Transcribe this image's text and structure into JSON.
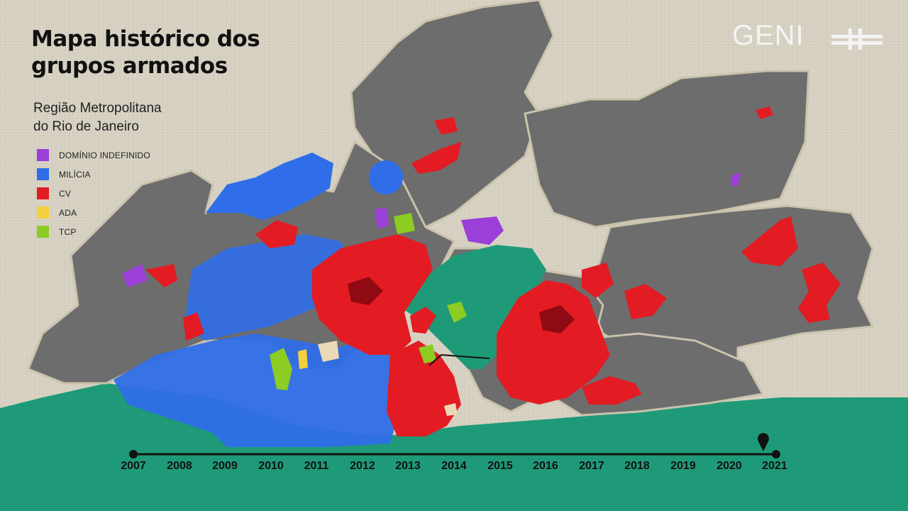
{
  "title": {
    "line1": "Mapa histórico dos",
    "line2": "grupos armados"
  },
  "subtitle": {
    "line1": "Região Metropolitana",
    "line2": "do Rio de Janeiro"
  },
  "brand": {
    "name": "GENI",
    "mark": "≠"
  },
  "legend": [
    {
      "label": "DOMÍNIO INDEFINIDO",
      "color": "#9b3fd9"
    },
    {
      "label": "MILÍCIA",
      "color": "#2f6ee8"
    },
    {
      "label": "CV",
      "color": "#e31b23"
    },
    {
      "label": "ADA",
      "color": "#f5cf3c"
    },
    {
      "label": "TCP",
      "color": "#8ccc23"
    }
  ],
  "timeline": {
    "years": [
      "2007",
      "2008",
      "2009",
      "2010",
      "2011",
      "2012",
      "2013",
      "2014",
      "2015",
      "2016",
      "2017",
      "2018",
      "2019",
      "2020",
      "2021"
    ],
    "current": "2021"
  },
  "colors": {
    "land": "#6f6f6f",
    "water": "#1f9a78",
    "border": "#c9c2ac",
    "milicia": "#2f6ee8",
    "cv": "#e31b23",
    "dominio": "#9b3fd9",
    "tcp": "#8ccc23",
    "ada": "#f5cf3c"
  }
}
